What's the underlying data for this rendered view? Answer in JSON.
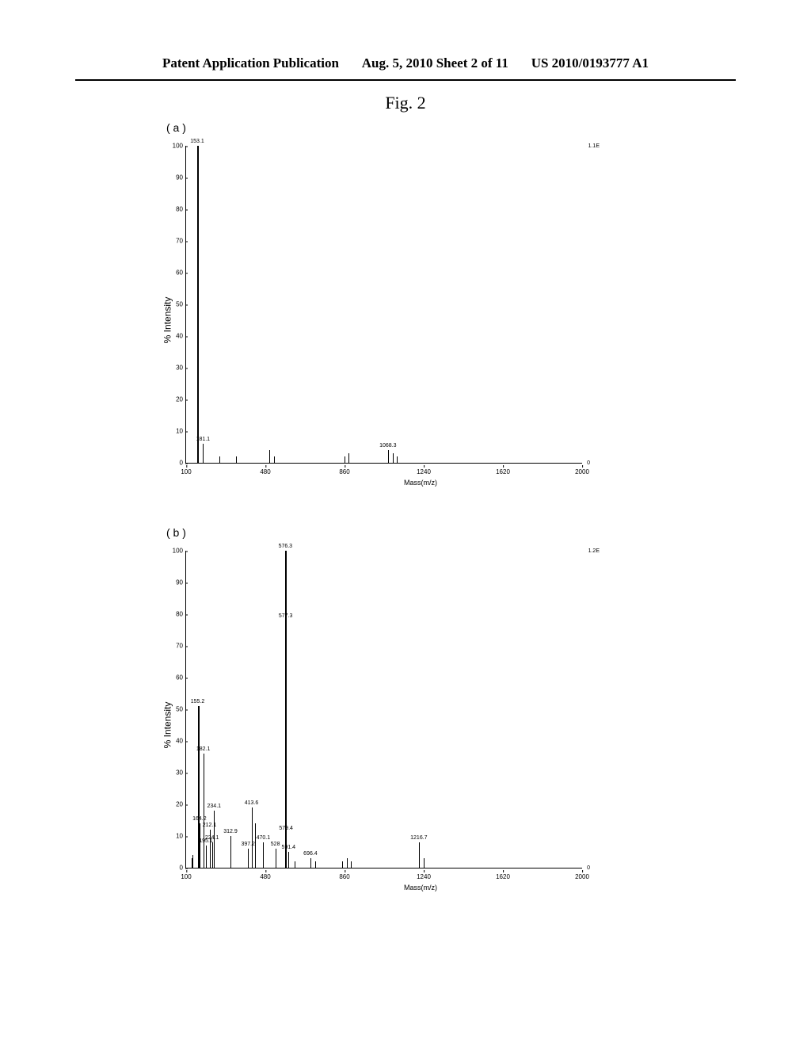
{
  "header": {
    "left": "Patent Application Publication",
    "center": "Aug. 5, 2010  Sheet 2 of 11",
    "right": "US 2010/0193777 A1"
  },
  "figure_title": "Fig. 2",
  "panel_a": {
    "label": "( a )",
    "ylabel": "% Intensity",
    "xlabel": "Mass(m/z)",
    "right_scale": "1.1E",
    "right_zero": "0",
    "xmin": 100,
    "xmax": 2000,
    "ymin": 0,
    "ymax": 100,
    "yticks": [
      0,
      10,
      20,
      30,
      40,
      50,
      60,
      70,
      80,
      90,
      100
    ],
    "xticks": [
      100,
      480,
      860,
      1240,
      1620,
      2000
    ],
    "peaks": [
      {
        "mz": 153.1,
        "intensity": 100,
        "label": "153.1",
        "wide": true
      },
      {
        "mz": 181.1,
        "intensity": 6,
        "label": "181.1"
      },
      {
        "mz": 260,
        "intensity": 2
      },
      {
        "mz": 340,
        "intensity": 2
      },
      {
        "mz": 500,
        "intensity": 4
      },
      {
        "mz": 520,
        "intensity": 2
      },
      {
        "mz": 860,
        "intensity": 2
      },
      {
        "mz": 880,
        "intensity": 3
      },
      {
        "mz": 1068.3,
        "intensity": 4,
        "label": "1068.3"
      },
      {
        "mz": 1090,
        "intensity": 3
      },
      {
        "mz": 1110,
        "intensity": 2
      }
    ]
  },
  "panel_b": {
    "label": "( b )",
    "ylabel": "% Intensity",
    "xlabel": "Mass(m/z)",
    "right_scale": "1.2E",
    "right_zero": "0",
    "xmin": 100,
    "xmax": 2000,
    "ymin": 0,
    "ymax": 100,
    "yticks": [
      0,
      10,
      20,
      30,
      40,
      50,
      60,
      70,
      80,
      90,
      100
    ],
    "xticks": [
      100,
      480,
      860,
      1240,
      1620,
      2000
    ],
    "peaks": [
      {
        "mz": 125,
        "intensity": 3
      },
      {
        "mz": 130,
        "intensity": 4
      },
      {
        "mz": 155.2,
        "intensity": 51,
        "label": "155.2",
        "wide": true
      },
      {
        "mz": 164.2,
        "intensity": 14,
        "label": "164.2"
      },
      {
        "mz": 182.1,
        "intensity": 36,
        "label": "182.1"
      },
      {
        "mz": 195.1,
        "intensity": 7,
        "label": "195.1"
      },
      {
        "mz": 212.1,
        "intensity": 12,
        "label": "212.1"
      },
      {
        "mz": 224.1,
        "intensity": 8,
        "label": "224.1"
      },
      {
        "mz": 234.1,
        "intensity": 18,
        "label": "234.1"
      },
      {
        "mz": 312.9,
        "intensity": 10,
        "label": "312.9"
      },
      {
        "mz": 397.2,
        "intensity": 6,
        "label": "397.2"
      },
      {
        "mz": 413.6,
        "intensity": 19,
        "label": "413.6"
      },
      {
        "mz": 430,
        "intensity": 14
      },
      {
        "mz": 470.1,
        "intensity": 8,
        "label": "470.1"
      },
      {
        "mz": 528,
        "intensity": 6,
        "label": "528"
      },
      {
        "mz": 576.3,
        "intensity": 100,
        "label": "576.3",
        "wide": true
      },
      {
        "mz": 577.3,
        "intensity": 78,
        "label": "577.3"
      },
      {
        "mz": 579.4,
        "intensity": 11,
        "label": "579.4"
      },
      {
        "mz": 591.4,
        "intensity": 5,
        "label": "591.4"
      },
      {
        "mz": 620,
        "intensity": 2
      },
      {
        "mz": 696.4,
        "intensity": 3,
        "label": "696.4"
      },
      {
        "mz": 720,
        "intensity": 2
      },
      {
        "mz": 850,
        "intensity": 2
      },
      {
        "mz": 870,
        "intensity": 3
      },
      {
        "mz": 890,
        "intensity": 2
      },
      {
        "mz": 1216.7,
        "intensity": 8,
        "label": "1216.7"
      },
      {
        "mz": 1240,
        "intensity": 3
      }
    ]
  }
}
